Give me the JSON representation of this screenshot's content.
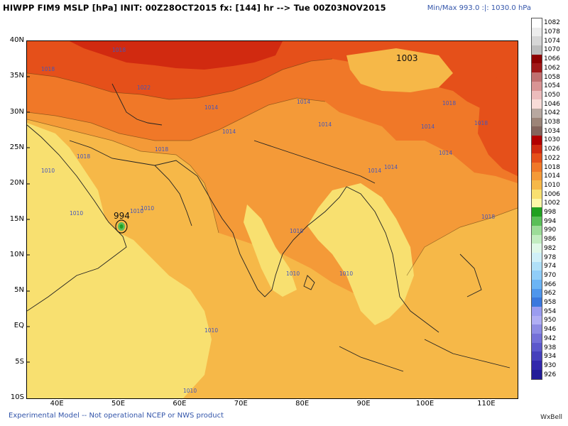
{
  "header": {
    "title": "HIWPP FIM9 MSLP [hPa] INIT: 00Z28OCT2015 fx: [144] hr --> Tue 00Z03NOV2015",
    "minmax": "Min/Max 993.0 :|: 1030.0 hPa"
  },
  "footer": {
    "note": "Experimental Model -- Not operational NCEP or NWS product",
    "brand": "WxBell"
  },
  "axes": {
    "lat_labels": [
      "40N",
      "35N",
      "30N",
      "25N",
      "20N",
      "15N",
      "10N",
      "5N",
      "EQ",
      "5S",
      "10S"
    ],
    "lon_labels": [
      "40E",
      "50E",
      "60E",
      "70E",
      "80E",
      "90E",
      "100E",
      "110E"
    ]
  },
  "colorbar": {
    "levels": [
      "1082",
      "1078",
      "1074",
      "1070",
      "1066",
      "1062",
      "1058",
      "1054",
      "1050",
      "1046",
      "1042",
      "1038",
      "1034",
      "1030",
      "1026",
      "1022",
      "1018",
      "1014",
      "1010",
      "1006",
      "1002",
      "998",
      "994",
      "990",
      "986",
      "982",
      "978",
      "974",
      "970",
      "966",
      "962",
      "958",
      "954",
      "950",
      "946",
      "942",
      "938",
      "934",
      "930",
      "926"
    ],
    "colors": [
      "#ffffff",
      "#ececec",
      "#d6d6d6",
      "#bcbcbc",
      "#8c0000",
      "#a01818",
      "#c07070",
      "#d89494",
      "#ecbcbc",
      "#f8dcd8",
      "#b8a8a0",
      "#9c8478",
      "#84645c",
      "#b20000",
      "#d12a10",
      "#e5501a",
      "#f07828",
      "#f49a38",
      "#f6b848",
      "#f8e070",
      "#fdf7a8",
      "#20a020",
      "#5abf58",
      "#9cdc98",
      "#c2ecc0",
      "#e0f8e8",
      "#d0f0f8",
      "#b0e0f8",
      "#90cdf8",
      "#6cb4f4",
      "#4f96ec",
      "#3a78de",
      "#9a9cf0",
      "#b0aef4",
      "#8e8ce4",
      "#7470d8",
      "#5c58cc",
      "#4640bc",
      "#3228ac",
      "#221c98"
    ]
  },
  "map": {
    "low_label": "994",
    "low_label_north": "1003",
    "isobar_labels": [
      "1018",
      "1018",
      "1022",
      "1014",
      "1018",
      "1014",
      "1010",
      "1010",
      "1010",
      "1010",
      "1010",
      "1010",
      "1010",
      "1010",
      "1014",
      "1014",
      "1014",
      "1018",
      "1018",
      "1014",
      "1010",
      "1014",
      "1014",
      "1018",
      "1018"
    ]
  }
}
